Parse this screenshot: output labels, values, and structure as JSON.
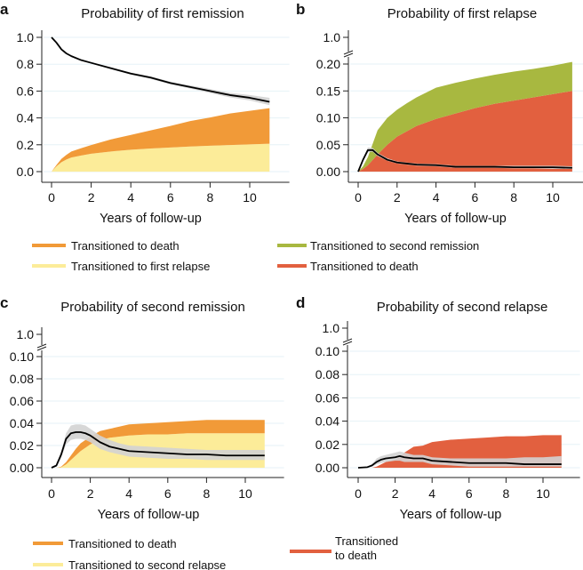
{
  "figure": {
    "colors": {
      "orange": "#F19A38",
      "yellow": "#FCEC99",
      "green": "#A8B840",
      "red": "#E2603F",
      "ci_band": "#D3D3D3",
      "line": "#000000",
      "grid": "#E6F2F7",
      "axis": "#222222"
    }
  },
  "chart_data": [
    {
      "id": "a",
      "letter": "a",
      "type": "area",
      "title": "Probability of first remission",
      "xlabel": "Years of follow-up",
      "ylabel": "",
      "xlim": [
        0,
        11
      ],
      "xticks": [
        0,
        2,
        4,
        6,
        8,
        10
      ],
      "xtick_labels": [
        "0",
        "2",
        "4",
        "6",
        "8",
        "10"
      ],
      "ylim": [
        0,
        1.0
      ],
      "yticks": [
        0.0,
        0.2,
        0.4,
        0.6,
        0.8,
        1.0
      ],
      "ytick_labels": [
        "0.0",
        "0.2",
        "0.4",
        "0.6",
        "0.8",
        "1.0"
      ],
      "axis_break": false,
      "grid": true,
      "x": [
        0,
        0.25,
        0.5,
        0.75,
        1,
        1.5,
        2,
        3,
        4,
        5,
        6,
        7,
        8,
        9,
        10,
        11
      ],
      "stacked_areas": [
        {
          "name": "Transitioned to first relapse",
          "color_key": "yellow",
          "values": [
            0,
            0.04,
            0.07,
            0.09,
            0.105,
            0.12,
            0.133,
            0.15,
            0.163,
            0.172,
            0.18,
            0.187,
            0.193,
            0.198,
            0.203,
            0.208
          ]
        },
        {
          "name": "Transitioned to death",
          "color_key": "orange",
          "values": [
            0,
            0.01,
            0.025,
            0.035,
            0.045,
            0.055,
            0.065,
            0.09,
            0.11,
            0.135,
            0.16,
            0.19,
            0.21,
            0.235,
            0.25,
            0.265
          ]
        }
      ],
      "line": {
        "name": "Probability of first remission",
        "values": [
          1.0,
          0.96,
          0.91,
          0.88,
          0.86,
          0.83,
          0.81,
          0.77,
          0.73,
          0.7,
          0.66,
          0.63,
          0.6,
          0.57,
          0.55,
          0.52
        ],
        "ci_lower": [
          1.0,
          0.955,
          0.905,
          0.875,
          0.855,
          0.825,
          0.805,
          0.763,
          0.722,
          0.69,
          0.65,
          0.618,
          0.585,
          0.553,
          0.53,
          0.495
        ],
        "ci_upper": [
          1.0,
          0.965,
          0.915,
          0.885,
          0.865,
          0.835,
          0.815,
          0.777,
          0.738,
          0.71,
          0.67,
          0.642,
          0.615,
          0.587,
          0.57,
          0.55
        ]
      },
      "legend": [
        {
          "label": "Transitioned to death",
          "color_key": "orange"
        },
        {
          "label": "Transitioned to first relapse",
          "color_key": "yellow"
        }
      ]
    },
    {
      "id": "b",
      "letter": "b",
      "type": "area",
      "title": "Probability of first relapse",
      "xlabel": "Years of follow-up",
      "ylabel": "",
      "xlim": [
        0,
        11
      ],
      "xticks": [
        0,
        2,
        4,
        6,
        8,
        10
      ],
      "xtick_labels": [
        "0",
        "2",
        "4",
        "6",
        "8",
        "10"
      ],
      "ylim": [
        0,
        0.2
      ],
      "yticks": [
        0.0,
        0.05,
        0.1,
        0.15,
        0.2
      ],
      "ytick_labels": [
        "0.00",
        "0.05",
        "0.10",
        "0.15",
        "0.20"
      ],
      "axis_break": true,
      "break_tick_label": "1.0",
      "grid": true,
      "x": [
        0,
        0.25,
        0.5,
        0.75,
        1,
        1.5,
        2,
        2.5,
        3,
        4,
        5,
        6,
        7,
        8,
        9,
        10,
        11
      ],
      "stacked_areas": [
        {
          "name": "Transitioned to death",
          "color_key": "red",
          "values": [
            0,
            0.005,
            0.012,
            0.022,
            0.032,
            0.05,
            0.065,
            0.075,
            0.085,
            0.098,
            0.108,
            0.118,
            0.126,
            0.132,
            0.138,
            0.144,
            0.15
          ]
        },
        {
          "name": "Transitioned to second remission",
          "color_key": "green",
          "values": [
            0,
            0.005,
            0.015,
            0.03,
            0.045,
            0.05,
            0.05,
            0.052,
            0.053,
            0.058,
            0.057,
            0.055,
            0.054,
            0.054,
            0.053,
            0.053,
            0.054
          ]
        }
      ],
      "line": {
        "name": "Probability of first relapse",
        "values": [
          0,
          0.022,
          0.04,
          0.04,
          0.032,
          0.022,
          0.017,
          0.015,
          0.013,
          0.012,
          0.009,
          0.009,
          0.009,
          0.008,
          0.008,
          0.008,
          0.007
        ],
        "ci_lower": [
          0,
          0.019,
          0.036,
          0.037,
          0.029,
          0.02,
          0.015,
          0.013,
          0.011,
          0.01,
          0.007,
          0.007,
          0.007,
          0.006,
          0.006,
          0.005,
          0.005
        ],
        "ci_upper": [
          0,
          0.025,
          0.045,
          0.044,
          0.035,
          0.025,
          0.019,
          0.017,
          0.015,
          0.014,
          0.011,
          0.011,
          0.011,
          0.011,
          0.011,
          0.011,
          0.01
        ]
      },
      "legend": [
        {
          "label": "Transitioned to second remission",
          "color_key": "green"
        },
        {
          "label": "Transitioned to death",
          "color_key": "red"
        }
      ]
    },
    {
      "id": "c",
      "letter": "c",
      "type": "area",
      "title": "Probability of second remission",
      "xlabel": "Years of follow-up",
      "ylabel": "",
      "xlim": [
        0,
        11
      ],
      "xticks": [
        0,
        2,
        4,
        6,
        8,
        10
      ],
      "xtick_labels": [
        "0",
        "2",
        "4",
        "6",
        "8",
        "10"
      ],
      "ylim": [
        0,
        0.1
      ],
      "yticks": [
        0.0,
        0.02,
        0.04,
        0.06,
        0.08,
        0.1
      ],
      "ytick_labels": [
        "0.00",
        "0.02",
        "0.04",
        "0.06",
        "0.08",
        "0.10"
      ],
      "axis_break": true,
      "break_tick_label": "1.0",
      "grid": true,
      "x": [
        0,
        0.25,
        0.5,
        0.75,
        1,
        1.25,
        1.5,
        1.75,
        2,
        2.5,
        3,
        3.5,
        4,
        5,
        6,
        7,
        8,
        9,
        10,
        11
      ],
      "stacked_areas": [
        {
          "name": "Transitioned to second relapse",
          "color_key": "yellow",
          "values": [
            0,
            0,
            0.0005,
            0.003,
            0.007,
            0.011,
            0.015,
            0.018,
            0.021,
            0.025,
            0.027,
            0.028,
            0.029,
            0.03,
            0.03,
            0.031,
            0.031,
            0.031,
            0.031,
            0.031
          ]
        },
        {
          "name": "Transitioned to death",
          "color_key": "orange",
          "values": [
            0,
            0,
            0.0005,
            0.002,
            0.004,
            0.006,
            0.007,
            0.007,
            0.007,
            0.008,
            0.008,
            0.009,
            0.01,
            0.01,
            0.011,
            0.011,
            0.012,
            0.012,
            0.012,
            0.012
          ]
        }
      ],
      "line": {
        "name": "Probability of second remission",
        "values": [
          0,
          0.002,
          0.012,
          0.026,
          0.031,
          0.032,
          0.032,
          0.031,
          0.029,
          0.023,
          0.019,
          0.017,
          0.015,
          0.014,
          0.013,
          0.012,
          0.012,
          0.011,
          0.011,
          0.011
        ],
        "ci_lower": [
          0,
          0.001,
          0.009,
          0.021,
          0.025,
          0.026,
          0.026,
          0.025,
          0.023,
          0.017,
          0.014,
          0.012,
          0.01,
          0.009,
          0.008,
          0.008,
          0.007,
          0.007,
          0.007,
          0.007
        ],
        "ci_upper": [
          0,
          0.003,
          0.015,
          0.031,
          0.038,
          0.039,
          0.039,
          0.038,
          0.035,
          0.029,
          0.025,
          0.022,
          0.02,
          0.019,
          0.018,
          0.017,
          0.016,
          0.016,
          0.016,
          0.016
        ]
      },
      "legend": [
        {
          "label": "Transitioned to death",
          "color_key": "orange"
        },
        {
          "label": "Transitioned to second relapse",
          "color_key": "yellow"
        }
      ]
    },
    {
      "id": "d",
      "letter": "d",
      "type": "area",
      "title": "Probability of second relapse",
      "xlabel": "Years of follow-up",
      "ylabel": "",
      "xlim": [
        0,
        11
      ],
      "xticks": [
        0,
        2,
        4,
        6,
        8,
        10
      ],
      "xtick_labels": [
        "0",
        "2",
        "4",
        "6",
        "8",
        "10"
      ],
      "ylim": [
        0,
        0.1
      ],
      "yticks": [
        0.0,
        0.02,
        0.04,
        0.06,
        0.08,
        0.1
      ],
      "ytick_labels": [
        "0.00",
        "0.02",
        "0.04",
        "0.06",
        "0.08",
        "0.10"
      ],
      "axis_break": true,
      "break_tick_label": "1.0",
      "grid": true,
      "x": [
        0,
        0.5,
        0.75,
        1,
        1.25,
        1.5,
        2,
        2.25,
        2.5,
        3,
        3.5,
        4,
        5,
        6,
        7,
        8,
        9,
        10,
        11
      ],
      "stacked_areas": [
        {
          "name": "Transitioned to death",
          "color_key": "red",
          "values": [
            0,
            0,
            0,
            0.001,
            0.003,
            0.005,
            0.007,
            0.009,
            0.013,
            0.018,
            0.019,
            0.022,
            0.024,
            0.025,
            0.026,
            0.027,
            0.027,
            0.028,
            0.028
          ]
        }
      ],
      "line": {
        "name": "Probability of second relapse",
        "values": [
          0,
          0.0005,
          0.002,
          0.005,
          0.007,
          0.008,
          0.009,
          0.01,
          0.009,
          0.008,
          0.008,
          0.006,
          0.005,
          0.004,
          0.004,
          0.004,
          0.003,
          0.003,
          0.003
        ],
        "ci_lower": [
          0,
          0.0003,
          0.001,
          0.003,
          0.004,
          0.005,
          0.006,
          0.006,
          0.005,
          0.005,
          0.005,
          0.003,
          0.002,
          0.001,
          0.001,
          0.001,
          0.001,
          0.001,
          0.001
        ],
        "ci_upper": [
          0,
          0.0008,
          0.003,
          0.008,
          0.01,
          0.011,
          0.013,
          0.014,
          0.013,
          0.011,
          0.011,
          0.009,
          0.008,
          0.008,
          0.008,
          0.008,
          0.009,
          0.009,
          0.01
        ]
      },
      "legend": [
        {
          "label": "Transitioned\nto death",
          "color_key": "red"
        }
      ]
    }
  ]
}
